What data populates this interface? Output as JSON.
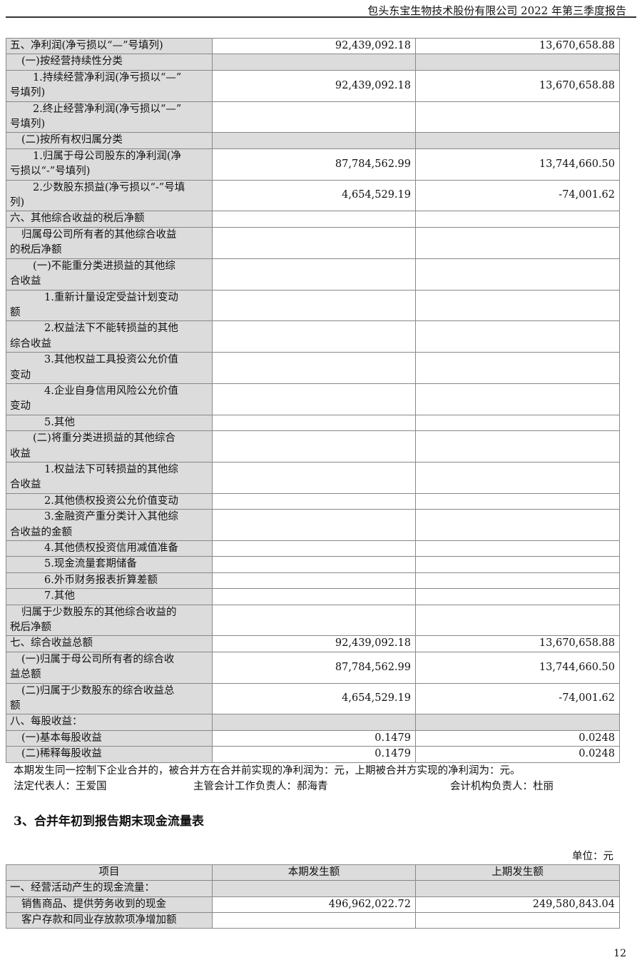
{
  "header": {
    "title": "包头东宝生物技术股份有限公司 2022 年第三季度报告"
  },
  "income_rows": [
    {
      "label": "五、净利润(净亏损以“—”号填列)",
      "current": "92,439,092.18",
      "prior": "13,670,658.88"
    },
    {
      "label": "(一)按经营持续性分类",
      "current": "",
      "prior": ""
    },
    {
      "label": "1.持续经营净利润(净亏损以“—”\n号填列)",
      "current": "92,439,092.18",
      "prior": "13,670,658.88"
    },
    {
      "label": "2.终止经营净利润(净亏损以“—”\n号填列)",
      "current": "",
      "prior": ""
    },
    {
      "label": "(二)按所有权归属分类",
      "current": "",
      "prior": ""
    },
    {
      "label": "1.归属于母公司股东的净利润(净\n亏损以“-”号填列)",
      "current": "87,784,562.99",
      "prior": "13,744,660.50"
    },
    {
      "label": "2.少数股东损益(净亏损以“-”号填\n列)",
      "current": "4,654,529.19",
      "prior": "-74,001.62"
    },
    {
      "label": "六、其他综合收益的税后净额",
      "current": "",
      "prior": ""
    },
    {
      "label": "归属母公司所有者的其他综合收益\n的税后净额",
      "current": "",
      "prior": ""
    },
    {
      "label": "(一)不能重分类进损益的其他综\n合收益",
      "current": "",
      "prior": ""
    },
    {
      "label": "1.重新计量设定受益计划变动\n额",
      "current": "",
      "prior": ""
    },
    {
      "label": "2.权益法下不能转损益的其他\n综合收益",
      "current": "",
      "prior": ""
    },
    {
      "label": "3.其他权益工具投资公允价值\n变动",
      "current": "",
      "prior": ""
    },
    {
      "label": "4.企业自身信用风险公允价值\n变动",
      "current": "",
      "prior": ""
    },
    {
      "label": "5.其他",
      "current": "",
      "prior": ""
    },
    {
      "label": "(二)将重分类进损益的其他综合\n收益",
      "current": "",
      "prior": ""
    },
    {
      "label": "1.权益法下可转损益的其他综\n合收益",
      "current": "",
      "prior": ""
    },
    {
      "label": "2.其他债权投资公允价值变动",
      "current": "",
      "prior": ""
    },
    {
      "label": "3.金融资产重分类计入其他综\n合收益的金额",
      "current": "",
      "prior": ""
    },
    {
      "label": "4.其他债权投资信用减值准备",
      "current": "",
      "prior": ""
    },
    {
      "label": "5.现金流量套期储备",
      "current": "",
      "prior": ""
    },
    {
      "label": "6.外币财务报表折算差额",
      "current": "",
      "prior": ""
    },
    {
      "label": "7.其他",
      "current": "",
      "prior": ""
    },
    {
      "label": "归属于少数股东的其他综合收益的\n税后净额",
      "current": "",
      "prior": ""
    },
    {
      "label": "七、综合收益总额",
      "current": "92,439,092.18",
      "prior": "13,670,658.88"
    },
    {
      "label": "(一)归属于母公司所有者的综合收\n益总额",
      "current": "87,784,562.99",
      "prior": "13,744,660.50"
    },
    {
      "label": "(二)归属于少数股东的综合收益总\n额",
      "current": "4,654,529.19",
      "prior": "-74,001.62"
    },
    {
      "label": "八、每股收益：",
      "current": "",
      "prior": ""
    },
    {
      "label": "(一)基本每股收益",
      "current": "0.1479",
      "prior": "0.0248"
    },
    {
      "label": "(二)稀释每股收益",
      "current": "0.1479",
      "prior": "0.0248"
    }
  ],
  "notes": {
    "merger": "本期发生同一控制下企业合并的，被合并方在合并前实现的净利润为：元，上期被合并方实现的净利润为：元。",
    "legal_rep": "法定代表人：王爱国",
    "accounting_head": "主管会计工作负责人：郝海青",
    "accounting_org_head": "会计机构负责人：杜丽"
  },
  "cashflow": {
    "section_title": "3、合并年初到报告期末现金流量表",
    "unit": "单位：元",
    "columns": [
      "项目",
      "本期发生额",
      "上期发生额"
    ],
    "rows": [
      {
        "label": "一、经营活动产生的现金流量：",
        "current": "",
        "prior": ""
      },
      {
        "label": "销售商品、提供劳务收到的现金",
        "current": "496,962,022.72",
        "prior": "249,580,843.04"
      },
      {
        "label": "客户存款和同业存放款项净增加额",
        "current": "",
        "prior": ""
      }
    ]
  },
  "page_number": "12"
}
